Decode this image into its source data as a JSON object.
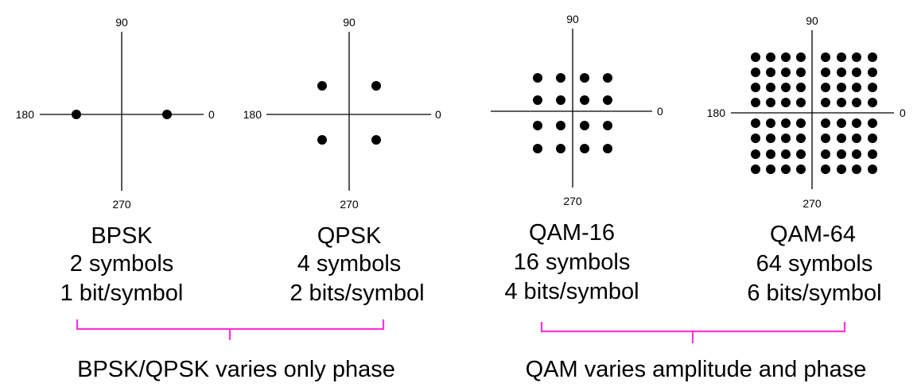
{
  "diagrams": [
    {
      "id": "bpsk",
      "angle_labels": {
        "top": "90",
        "left": "180",
        "right": "0",
        "bottom": "270"
      },
      "name": "BPSK",
      "symbols": "2 symbols",
      "bits": "1 bit/symbol",
      "points": [
        [
          -1,
          0
        ],
        [
          1,
          0
        ]
      ]
    },
    {
      "id": "qpsk",
      "angle_labels": {
        "top": "90",
        "left": "180",
        "right": "0",
        "bottom": "270"
      },
      "name": "QPSK",
      "symbols": "4 symbols",
      "bits": "2 bits/symbol",
      "points": [
        [
          -1,
          1
        ],
        [
          1,
          1
        ],
        [
          -1,
          -1
        ],
        [
          1,
          -1
        ]
      ]
    },
    {
      "id": "qam16",
      "angle_labels": {
        "top": "90",
        "right": "0",
        "bottom": "270"
      },
      "name": "QAM-16",
      "symbols": "16 symbols",
      "bits": "4 bits/symbol",
      "grid": 4
    },
    {
      "id": "qam64",
      "angle_labels": {
        "top": "90",
        "left": "180",
        "right": "0",
        "bottom": "270"
      },
      "name": "QAM-64",
      "symbols": "64 symbols",
      "bits": "6 bits/symbol",
      "grid": 8
    }
  ],
  "groups": [
    {
      "label": "BPSK/QPSK varies only phase"
    },
    {
      "label": "QAM varies amplitude and phase"
    }
  ],
  "colors": {
    "brace": "#ff33dd",
    "dot": "#000000"
  }
}
